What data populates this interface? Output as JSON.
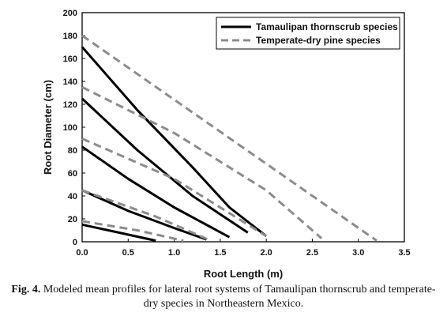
{
  "caption": {
    "label": "Fig. 4.",
    "text": "Modeled mean profiles for lateral root systems of Tamaulipan thornscrub and temperate-dry species in Northeastern Mexico."
  },
  "chart_data": {
    "type": "line",
    "xlabel": "Root Length (m)",
    "ylabel": "Root Diameter (cm)",
    "xlim": [
      0,
      3.5
    ],
    "ylim": [
      0,
      200
    ],
    "xticks": [
      "0.0",
      "0.5",
      "1.0",
      "1.5",
      "2.0",
      "2.5",
      "3.0",
      "3.5"
    ],
    "yticks": [
      "0",
      "20",
      "40",
      "60",
      "80",
      "100",
      "120",
      "140",
      "160",
      "180",
      "200"
    ],
    "legend_position": "top-right",
    "legend": [
      {
        "label": "Tamaulipan thornscrub species",
        "style": "solid",
        "color": "#000000"
      },
      {
        "label": "Temperate-dry pine species",
        "style": "dashed",
        "color": "#8c8c8c"
      }
    ],
    "series": [
      {
        "group": "Tamaulipan thornscrub species",
        "style": "solid",
        "color": "#000000",
        "points": [
          [
            0,
            170
          ],
          [
            0.6,
            115
          ],
          [
            1.2,
            65
          ],
          [
            1.6,
            30
          ],
          [
            2.0,
            5
          ]
        ]
      },
      {
        "group": "Tamaulipan thornscrub species",
        "style": "solid",
        "color": "#000000",
        "points": [
          [
            0,
            125
          ],
          [
            0.6,
            80
          ],
          [
            1.2,
            40
          ],
          [
            1.8,
            8
          ]
        ]
      },
      {
        "group": "Tamaulipan thornscrub species",
        "style": "solid",
        "color": "#000000",
        "points": [
          [
            0,
            83
          ],
          [
            0.5,
            55
          ],
          [
            1.0,
            30
          ],
          [
            1.6,
            4
          ]
        ]
      },
      {
        "group": "Tamaulipan thornscrub species",
        "style": "solid",
        "color": "#000000",
        "points": [
          [
            0,
            45
          ],
          [
            0.5,
            27
          ],
          [
            1.0,
            12
          ],
          [
            1.35,
            2
          ]
        ]
      },
      {
        "group": "Tamaulipan thornscrub species",
        "style": "solid",
        "color": "#000000",
        "points": [
          [
            0,
            15
          ],
          [
            0.4,
            8
          ],
          [
            0.8,
            1
          ]
        ]
      },
      {
        "group": "Temperate-dry pine species",
        "style": "dashed",
        "color": "#8c8c8c",
        "points": [
          [
            0,
            180
          ],
          [
            3.2,
            1
          ]
        ]
      },
      {
        "group": "Temperate-dry pine species",
        "style": "dashed",
        "color": "#8c8c8c",
        "points": [
          [
            0,
            135
          ],
          [
            1.0,
            95
          ],
          [
            2.0,
            45
          ],
          [
            2.6,
            3
          ]
        ]
      },
      {
        "group": "Temperate-dry pine species",
        "style": "dashed",
        "color": "#8c8c8c",
        "points": [
          [
            0,
            90
          ],
          [
            1.0,
            55
          ],
          [
            2.0,
            5
          ]
        ]
      },
      {
        "group": "Temperate-dry pine species",
        "style": "dashed",
        "color": "#8c8c8c",
        "points": [
          [
            0,
            45
          ],
          [
            0.8,
            22
          ],
          [
            1.4,
            1
          ]
        ]
      },
      {
        "group": "Temperate-dry pine species",
        "style": "dashed",
        "color": "#8c8c8c",
        "points": [
          [
            0,
            18
          ],
          [
            0.6,
            10
          ],
          [
            1.1,
            1
          ]
        ]
      }
    ]
  }
}
